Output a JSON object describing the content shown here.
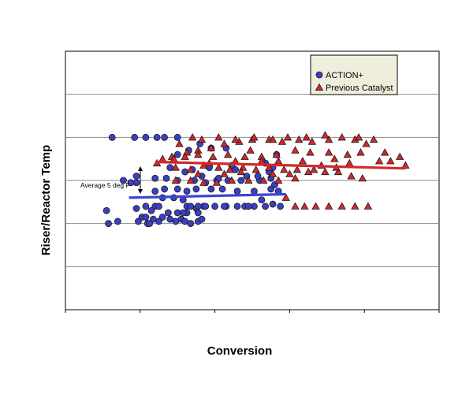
{
  "chart_data": {
    "type": "scatter",
    "title": "",
    "xlabel": "Conversion",
    "ylabel": "Riser/Reactor Temp",
    "xlim": [
      0,
      10
    ],
    "ylim": [
      0,
      6
    ],
    "grid": "horizontal",
    "legend_position": "top-right",
    "tick_labels_shown": false,
    "annotation": "Average 5 deg F",
    "series": [
      {
        "name": "ACTION+",
        "marker": "circle",
        "color": "#3b3fc4",
        "trend": {
          "x": [
            1.7,
            5.9
          ],
          "y": [
            2.6,
            2.68
          ],
          "color": "#3a46cf"
        },
        "points": [
          [
            1.25,
            4
          ],
          [
            1.85,
            4
          ],
          [
            2.15,
            4
          ],
          [
            2.45,
            4
          ],
          [
            2.65,
            4
          ],
          [
            3.0,
            4
          ],
          [
            1.9,
            3.1
          ],
          [
            1.9,
            2.95
          ],
          [
            1.55,
            3.0
          ],
          [
            1.75,
            2.95
          ],
          [
            1.1,
            2.3
          ],
          [
            1.15,
            2.0
          ],
          [
            1.4,
            2.05
          ],
          [
            1.9,
            2.35
          ],
          [
            2.05,
            2.15
          ],
          [
            2.2,
            2.0
          ],
          [
            1.95,
            2.05
          ],
          [
            2.15,
            2.15
          ],
          [
            2.35,
            2.1
          ],
          [
            2.5,
            2.05
          ],
          [
            2.6,
            2.15
          ],
          [
            2.8,
            2.1
          ],
          [
            2.95,
            2.05
          ],
          [
            3.1,
            2.1
          ],
          [
            3.2,
            2.05
          ],
          [
            3.35,
            2.0
          ],
          [
            3.55,
            2.05
          ],
          [
            3.65,
            2.1
          ],
          [
            2.4,
            2.4
          ],
          [
            2.6,
            2.6
          ],
          [
            2.9,
            2.6
          ],
          [
            3.25,
            2.4
          ],
          [
            3.5,
            2.35
          ],
          [
            3.7,
            2.4
          ],
          [
            3.15,
            2.55
          ],
          [
            3.35,
            2.4
          ],
          [
            3.55,
            2.4
          ],
          [
            3.75,
            2.4
          ],
          [
            4.0,
            2.4
          ],
          [
            4.3,
            2.4
          ],
          [
            4.6,
            2.4
          ],
          [
            4.8,
            2.4
          ],
          [
            5.05,
            2.4
          ],
          [
            5.35,
            2.4
          ],
          [
            5.55,
            2.45
          ],
          [
            5.75,
            2.4
          ],
          [
            2.4,
            2.75
          ],
          [
            2.65,
            2.8
          ],
          [
            3.0,
            2.8
          ],
          [
            3.25,
            2.75
          ],
          [
            3.5,
            2.8
          ],
          [
            3.9,
            2.8
          ],
          [
            4.2,
            2.8
          ],
          [
            4.6,
            2.75
          ],
          [
            5.05,
            2.75
          ],
          [
            5.5,
            2.8
          ],
          [
            5.7,
            2.75
          ],
          [
            2.75,
            2.25
          ],
          [
            3.0,
            2.25
          ],
          [
            3.25,
            2.25
          ],
          [
            3.55,
            2.25
          ],
          [
            3.0,
            3.0
          ],
          [
            3.45,
            3.0
          ],
          [
            3.75,
            2.95
          ],
          [
            4.05,
            3.0
          ],
          [
            4.35,
            3.0
          ],
          [
            4.7,
            3.0
          ],
          [
            5.2,
            3.0
          ],
          [
            5.5,
            3.05
          ],
          [
            2.4,
            3.05
          ],
          [
            2.7,
            3.05
          ],
          [
            3.0,
            3.6
          ],
          [
            3.3,
            3.7
          ],
          [
            3.6,
            3.85
          ],
          [
            3.9,
            3.75
          ],
          [
            4.3,
            3.75
          ],
          [
            5.35,
            3.4
          ],
          [
            5.55,
            3.3
          ],
          [
            2.8,
            3.3
          ],
          [
            3.2,
            3.2
          ],
          [
            3.65,
            3.1
          ],
          [
            4.1,
            3.05
          ],
          [
            4.55,
            3.25
          ],
          [
            4.85,
            3.1
          ],
          [
            5.15,
            3.1
          ],
          [
            5.6,
            2.9
          ],
          [
            5.25,
            2.55
          ],
          [
            5.45,
            3.2
          ],
          [
            3.85,
            3.3
          ],
          [
            4.45,
            3.35
          ],
          [
            2.15,
            2.4
          ],
          [
            2.3,
            2.3
          ],
          [
            2.25,
            2.0
          ],
          [
            2.5,
            2.4
          ],
          [
            3.15,
            2.25
          ],
          [
            3.4,
            3.25
          ],
          [
            4.25,
            2.4
          ],
          [
            4.9,
            2.4
          ],
          [
            5.65,
            3.6
          ]
        ]
      },
      {
        "name": "Previous Catalyst",
        "marker": "triangle",
        "color": "#d7262b",
        "trend": {
          "x": [
            2.4,
            9.1
          ],
          "y": [
            3.43,
            3.28
          ],
          "color": "#d12a2a"
        },
        "points": [
          [
            2.6,
            3.5
          ],
          [
            2.85,
            3.55
          ],
          [
            3.25,
            3.65
          ],
          [
            3.55,
            3.7
          ],
          [
            3.9,
            3.75
          ],
          [
            4.25,
            3.85
          ],
          [
            4.65,
            3.9
          ],
          [
            5.0,
            3.95
          ],
          [
            5.45,
            3.95
          ],
          [
            5.8,
            3.9
          ],
          [
            6.25,
            3.95
          ],
          [
            6.6,
            3.9
          ],
          [
            7.05,
            3.95
          ],
          [
            7.4,
            4.0
          ],
          [
            7.75,
            3.95
          ],
          [
            8.05,
            3.85
          ],
          [
            8.55,
            3.65
          ],
          [
            8.95,
            3.55
          ],
          [
            8.7,
            3.45
          ],
          [
            9.1,
            3.35
          ],
          [
            7.55,
            3.6
          ],
          [
            7.05,
            3.65
          ],
          [
            6.55,
            3.65
          ],
          [
            6.15,
            3.7
          ],
          [
            5.65,
            3.6
          ],
          [
            5.25,
            3.55
          ],
          [
            4.8,
            3.55
          ],
          [
            4.35,
            3.6
          ],
          [
            3.95,
            3.55
          ],
          [
            3.55,
            3.6
          ],
          [
            3.2,
            3.55
          ],
          [
            2.9,
            3.5
          ],
          [
            2.45,
            3.4
          ],
          [
            2.95,
            3.3
          ],
          [
            3.35,
            3.25
          ],
          [
            3.7,
            3.35
          ],
          [
            4.1,
            3.3
          ],
          [
            4.4,
            3.25
          ],
          [
            4.75,
            3.3
          ],
          [
            5.1,
            3.25
          ],
          [
            5.45,
            3.3
          ],
          [
            5.85,
            3.25
          ],
          [
            6.2,
            3.25
          ],
          [
            6.5,
            3.2
          ],
          [
            6.95,
            3.2
          ],
          [
            7.3,
            3.2
          ],
          [
            7.65,
            3.1
          ],
          [
            7.95,
            3.05
          ],
          [
            6.15,
            3.05
          ],
          [
            5.7,
            3.0
          ],
          [
            5.3,
            3.0
          ],
          [
            4.9,
            3.0
          ],
          [
            4.45,
            3.0
          ],
          [
            4.05,
            2.95
          ],
          [
            3.7,
            2.95
          ],
          [
            3.35,
            3.0
          ],
          [
            2.95,
            3.0
          ],
          [
            5.9,
            2.6
          ],
          [
            6.15,
            2.4
          ],
          [
            6.4,
            2.4
          ],
          [
            6.7,
            2.4
          ],
          [
            7.05,
            2.4
          ],
          [
            7.4,
            2.4
          ],
          [
            7.75,
            2.4
          ],
          [
            8.1,
            2.4
          ],
          [
            3.85,
            3.4
          ],
          [
            4.55,
            3.45
          ],
          [
            5.25,
            3.45
          ],
          [
            6.35,
            3.45
          ],
          [
            7.2,
            3.5
          ],
          [
            3.05,
            3.85
          ],
          [
            3.4,
            4.0
          ],
          [
            3.65,
            3.95
          ],
          [
            4.1,
            4.0
          ],
          [
            4.55,
            3.95
          ],
          [
            5.05,
            4.0
          ],
          [
            5.55,
            3.95
          ],
          [
            5.95,
            4.0
          ],
          [
            6.45,
            4.0
          ],
          [
            6.95,
            4.05
          ],
          [
            7.85,
            4.0
          ],
          [
            8.25,
            3.95
          ],
          [
            5.7,
            3.45
          ],
          [
            6.85,
            3.35
          ],
          [
            7.25,
            3.3
          ],
          [
            4.7,
            3.2
          ],
          [
            5.55,
            3.15
          ],
          [
            6.0,
            3.15
          ],
          [
            7.6,
            3.4
          ],
          [
            8.4,
            3.45
          ],
          [
            4.25,
            3.15
          ],
          [
            3.55,
            3.15
          ],
          [
            6.65,
            3.25
          ],
          [
            7.9,
            3.65
          ],
          [
            4.95,
            3.7
          ]
        ]
      }
    ]
  },
  "legend": {
    "items": [
      {
        "label": "ACTION+",
        "marker": "circle",
        "color": "#3b3fc4"
      },
      {
        "label": "Previous Catalyst",
        "marker": "triangle",
        "color": "#d7262b"
      }
    ]
  },
  "colors": {
    "plot_border": "#000000",
    "gridline": "#8a8a8a",
    "legend_bg": "#efeedc",
    "legend_border": "#000000",
    "circle_fill": "#3b3fc4",
    "triangle_fill": "#d7262b",
    "marker_stroke": "#1a1a1a"
  }
}
